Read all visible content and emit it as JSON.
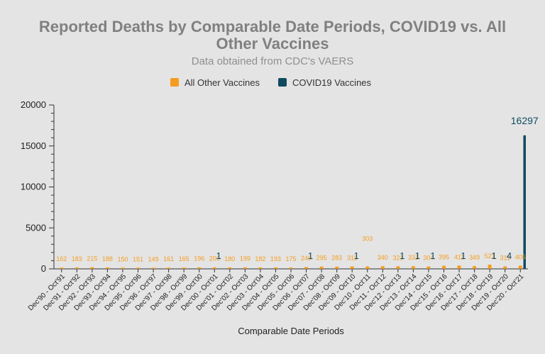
{
  "chart_data": {
    "type": "bar",
    "title": "Reported Deaths by Comparable Date Periods, COVID19 vs. All Other Vaccines",
    "title_lines": [
      "Reported Deaths by Comparable Date Periods, COVID19 vs. All",
      "Other Vaccines"
    ],
    "subtitle": "Data obtained from CDC's VAERS",
    "xlabel": "Comparable Date Periods",
    "ylabel": "",
    "ylim": [
      0,
      20000
    ],
    "y_ticks": [
      "20000",
      "15000",
      "10000",
      "5000",
      "0"
    ],
    "legend_position": "top",
    "categories": [
      "Dec'90 - Oct'91",
      "Dec'91 - Oct'92",
      "Dec'92 - Oct'93",
      "Dec'93 - Oct'94",
      "Dec'94 - Oct'95",
      "Dec'95 - Oct'96",
      "Dec'96 - Oct'97",
      "Dec'97 - Oct'98",
      "Dec'98 - Oct'99",
      "Dec'99 - Oct'00",
      "Dec'00 - Oct'01",
      "Dec'01 - Oct'02",
      "Dec'02 - Oct'03",
      "Dec'03 - Oct'04",
      "Dec'04 - Oct'05",
      "Dec'05 - Oct'06",
      "Dec'06 - Oct'07",
      "Dec'07 - Oct'08",
      "Dec'08 - Oct'09",
      "Dec'09 - Oct'10",
      "Dec'10 - Oct'11",
      "Dec'11 - Oct'12",
      "Dec'12 - Oct'13",
      "Dec'13 - Oct'14",
      "Dec'14 - Oct'15",
      "Dec'15 - Oct'16",
      "Dec'16 - Oct'17",
      "Dec'17 - Oct'18",
      "Dec'18 - Oct'19",
      "Dec'19 - Oct'20",
      "Dec'20 - Oct'21"
    ],
    "series": [
      {
        "name": "All Other Vaccines",
        "color": "#f59d20",
        "values": [
          162,
          183,
          215,
          188,
          150,
          151,
          149,
          161,
          165,
          196,
          200,
          180,
          199,
          182,
          193,
          175,
          240,
          295,
          283,
          311,
          303,
          340,
          321,
          331,
          304,
          395,
          411,
          349,
          521,
          311,
          405
        ],
        "labels": [
          "162",
          "183",
          "215",
          "188",
          "150",
          "151",
          "149",
          "161",
          "165",
          "196",
          "200",
          "180",
          "199",
          "182",
          "193",
          "175",
          "240",
          "295",
          "283",
          "311",
          "303",
          "340",
          "321",
          "331",
          "304",
          "395",
          "411",
          "349",
          "521",
          "311",
          "405"
        ]
      },
      {
        "name": "COVID19 Vaccines",
        "color": "#104a60",
        "values": [
          null,
          null,
          null,
          null,
          null,
          null,
          null,
          null,
          null,
          null,
          1,
          null,
          null,
          null,
          null,
          null,
          1,
          null,
          null,
          1,
          null,
          null,
          1,
          1,
          1,
          null,
          1,
          null,
          1,
          4,
          16297
        ],
        "labels": [
          "",
          "",
          "",
          "",
          "",
          "",
          "",
          "",
          "",
          "",
          "1",
          "",
          "",
          "",
          "",
          "",
          "1",
          "",
          "",
          "1",
          "",
          "",
          "1",
          "1",
          "1",
          "",
          "1",
          "",
          "1",
          "4",
          "16297"
        ]
      }
    ]
  }
}
